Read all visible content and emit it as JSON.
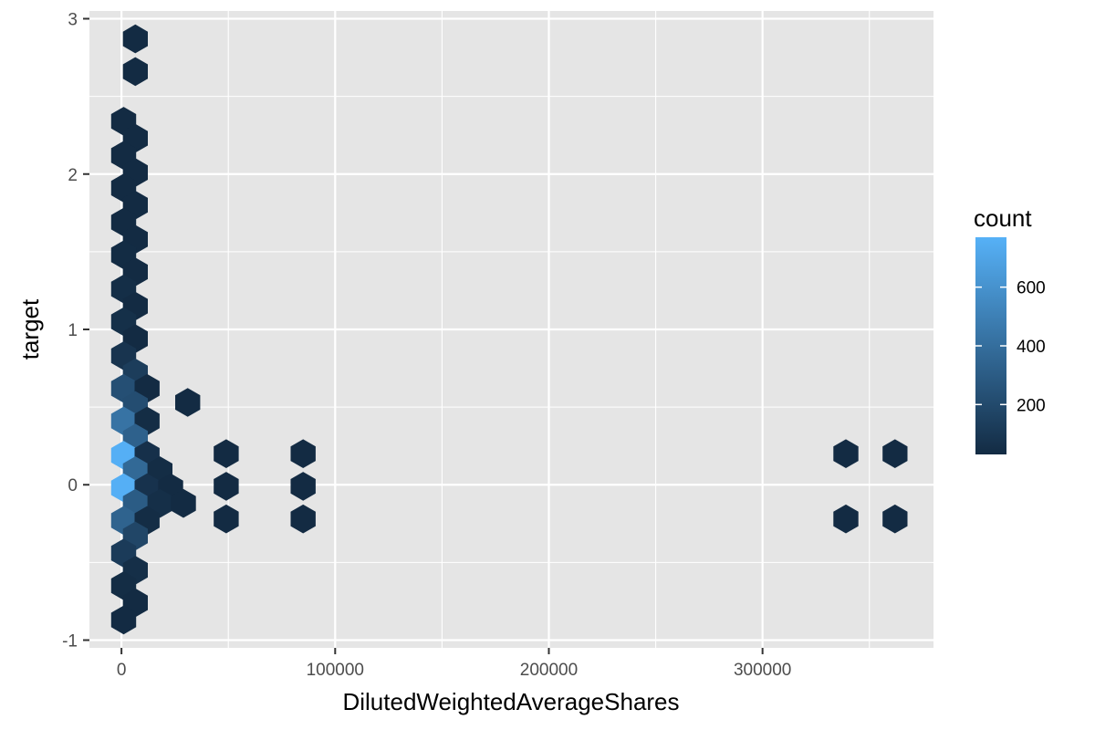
{
  "chart_data": {
    "type": "hexbin",
    "xlabel": "DilutedWeightedAverageShares",
    "ylabel": "target",
    "xlim": [
      -15000,
      380000
    ],
    "ylim": [
      -1.05,
      3.05
    ],
    "x_ticks": [
      {
        "value": 0,
        "label": "0"
      },
      {
        "value": 100000,
        "label": "100000"
      },
      {
        "value": 200000,
        "label": "200000"
      },
      {
        "value": 300000,
        "label": "300000"
      }
    ],
    "x_minor_ticks": [
      50000,
      150000,
      250000,
      350000
    ],
    "y_ticks": [
      {
        "value": -1,
        "label": "-1"
      },
      {
        "value": 0,
        "label": "0"
      },
      {
        "value": 1,
        "label": "1"
      },
      {
        "value": 2,
        "label": "2"
      },
      {
        "value": 3,
        "label": "3"
      }
    ],
    "y_minor_ticks": [
      -0.5,
      0.5,
      1.5,
      2.5
    ],
    "background_color": "#e5e5e5",
    "grid": true,
    "legend": {
      "title": "count",
      "position": "right",
      "min": 30,
      "max": 770,
      "ticks": [
        {
          "value": 200,
          "label": "200"
        },
        {
          "value": 400,
          "label": "400"
        },
        {
          "value": 600,
          "label": "600"
        }
      ],
      "color_low": "#132b43",
      "color_high": "#56b1f7"
    },
    "hexes": [
      {
        "x": 6500,
        "y": 2.87,
        "count": 5
      },
      {
        "x": 6500,
        "y": 2.66,
        "count": 5
      },
      {
        "x": 1000,
        "y": 2.34,
        "count": 20
      },
      {
        "x": 6500,
        "y": 2.23,
        "count": 10
      },
      {
        "x": 1000,
        "y": 2.12,
        "count": 20
      },
      {
        "x": 6500,
        "y": 2.01,
        "count": 10
      },
      {
        "x": 1000,
        "y": 1.91,
        "count": 25
      },
      {
        "x": 6500,
        "y": 1.8,
        "count": 10
      },
      {
        "x": 1000,
        "y": 1.69,
        "count": 30
      },
      {
        "x": 6500,
        "y": 1.58,
        "count": 15
      },
      {
        "x": 1000,
        "y": 1.48,
        "count": 35
      },
      {
        "x": 6500,
        "y": 1.37,
        "count": 15
      },
      {
        "x": 1000,
        "y": 1.26,
        "count": 45
      },
      {
        "x": 6500,
        "y": 1.15,
        "count": 20
      },
      {
        "x": 1000,
        "y": 1.05,
        "count": 55
      },
      {
        "x": 6500,
        "y": 0.94,
        "count": 25
      },
      {
        "x": 1000,
        "y": 0.83,
        "count": 80
      },
      {
        "x": 6500,
        "y": 0.72,
        "count": 130
      },
      {
        "x": 1000,
        "y": 0.62,
        "count": 230
      },
      {
        "x": 12000,
        "y": 0.62,
        "count": 15
      },
      {
        "x": 6500,
        "y": 0.51,
        "count": 220
      },
      {
        "x": 31000,
        "y": 0.53,
        "count": 5
      },
      {
        "x": 1000,
        "y": 0.41,
        "count": 430
      },
      {
        "x": 12000,
        "y": 0.41,
        "count": 40
      },
      {
        "x": 6500,
        "y": 0.3,
        "count": 330
      },
      {
        "x": 1000,
        "y": 0.19,
        "count": 760
      },
      {
        "x": 12000,
        "y": 0.19,
        "count": 60
      },
      {
        "x": 49000,
        "y": 0.2,
        "count": 5
      },
      {
        "x": 85000,
        "y": 0.2,
        "count": 5
      },
      {
        "x": 339000,
        "y": 0.2,
        "count": 5
      },
      {
        "x": 362000,
        "y": 0.2,
        "count": 5
      },
      {
        "x": 6500,
        "y": 0.09,
        "count": 370
      },
      {
        "x": 18000,
        "y": 0.09,
        "count": 40
      },
      {
        "x": 1000,
        "y": -0.02,
        "count": 760
      },
      {
        "x": 12000,
        "y": -0.02,
        "count": 70
      },
      {
        "x": 23000,
        "y": -0.02,
        "count": 30
      },
      {
        "x": 49000,
        "y": -0.01,
        "count": 5
      },
      {
        "x": 85000,
        "y": -0.01,
        "count": 5
      },
      {
        "x": 6500,
        "y": -0.12,
        "count": 300
      },
      {
        "x": 18000,
        "y": -0.12,
        "count": 50
      },
      {
        "x": 29000,
        "y": -0.12,
        "count": 15
      },
      {
        "x": 1000,
        "y": -0.23,
        "count": 340
      },
      {
        "x": 12000,
        "y": -0.23,
        "count": 40
      },
      {
        "x": 49000,
        "y": -0.22,
        "count": 5
      },
      {
        "x": 85000,
        "y": -0.22,
        "count": 5
      },
      {
        "x": 339000,
        "y": -0.22,
        "count": 5
      },
      {
        "x": 362000,
        "y": -0.22,
        "count": 5
      },
      {
        "x": 6500,
        "y": -0.33,
        "count": 180
      },
      {
        "x": 1000,
        "y": -0.44,
        "count": 120
      },
      {
        "x": 6500,
        "y": -0.55,
        "count": 50
      },
      {
        "x": 1000,
        "y": -0.65,
        "count": 40
      },
      {
        "x": 6500,
        "y": -0.76,
        "count": 20
      },
      {
        "x": 1000,
        "y": -0.87,
        "count": 15
      }
    ]
  }
}
